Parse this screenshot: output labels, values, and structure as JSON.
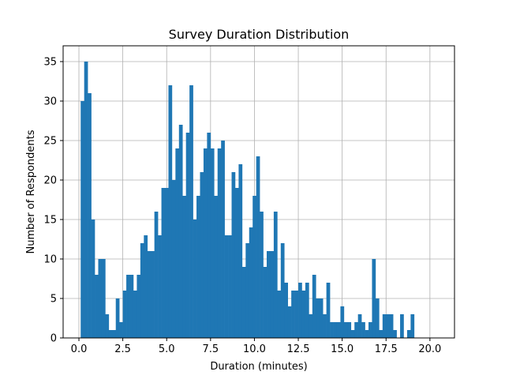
{
  "chart_data": {
    "type": "bar",
    "title": "Survey Duration Distribution",
    "xlabel": "Duration (minutes)",
    "ylabel": "Number of Respondents",
    "xlim": [
      -0.9,
      21.4
    ],
    "ylim": [
      0,
      37
    ],
    "xticks": [
      "0.0",
      "2.5",
      "5.0",
      "7.5",
      "10.0",
      "12.5",
      "15.0",
      "17.5",
      "20.0"
    ],
    "xtick_values": [
      0,
      2.5,
      5,
      7.5,
      10,
      12.5,
      15,
      17.5,
      20
    ],
    "yticks": [
      0,
      5,
      10,
      15,
      20,
      25,
      30,
      35
    ],
    "grid": true,
    "bar_color": "#1f77b4",
    "bin_start": 0.1,
    "bin_width": 0.2,
    "values": [
      30,
      35,
      31,
      15,
      8,
      10,
      10,
      3,
      1,
      1,
      5,
      2,
      6,
      8,
      8,
      6,
      8,
      12,
      13,
      11,
      11,
      16,
      13,
      19,
      19,
      32,
      20,
      24,
      27,
      18,
      26,
      32,
      15,
      18,
      21,
      24,
      26,
      24,
      18,
      24,
      25,
      13,
      13,
      21,
      19,
      22,
      9,
      12,
      14,
      18,
      23,
      16,
      9,
      11,
      11,
      16,
      6,
      12,
      7,
      4,
      6,
      6,
      7,
      6,
      7,
      3,
      8,
      5,
      5,
      3,
      7,
      2,
      2,
      2,
      4,
      2,
      2,
      1,
      2,
      3,
      2,
      1,
      2,
      10,
      5,
      1,
      3,
      3,
      3,
      1,
      0,
      3,
      0,
      1,
      3
    ]
  }
}
